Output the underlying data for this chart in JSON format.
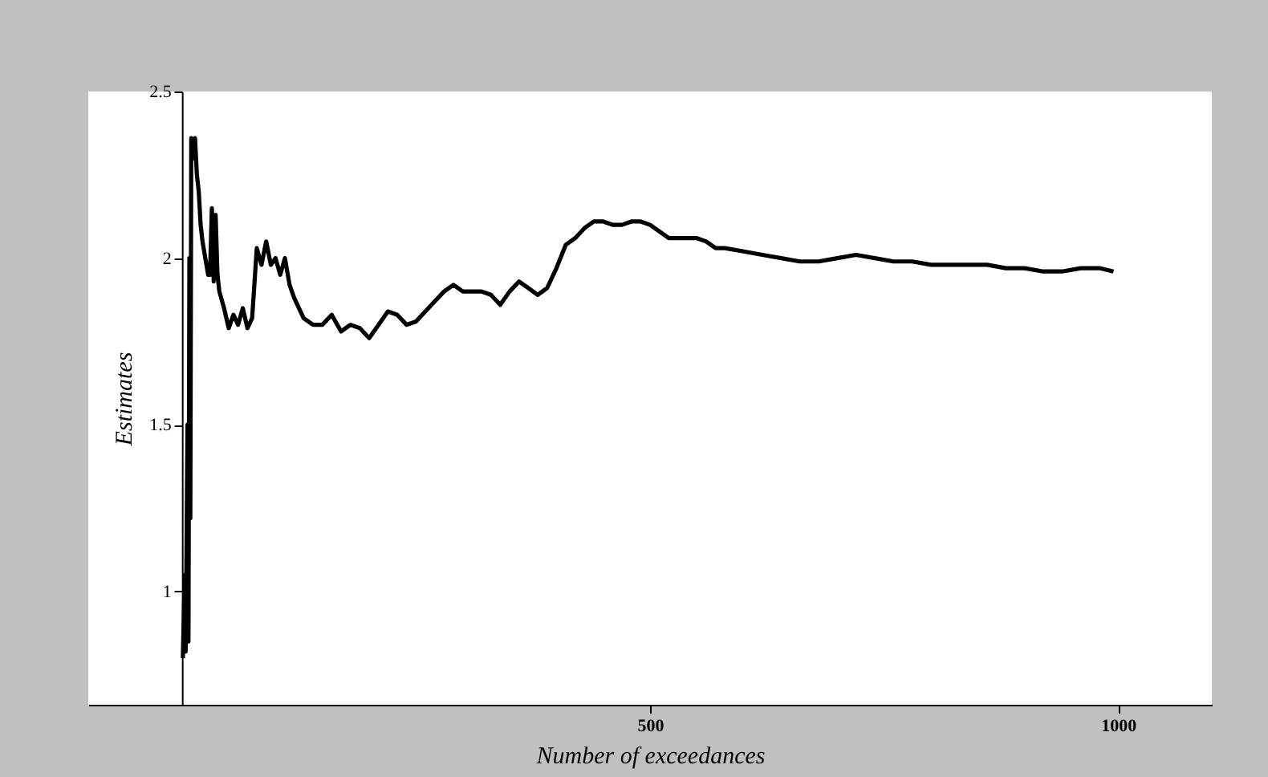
{
  "chart_data": {
    "type": "line",
    "xlabel": "Number of exceedances",
    "ylabel": "Estimates",
    "xlim": [
      -100,
      1100
    ],
    "ylim": [
      0.66,
      2.5
    ],
    "xticks": [
      500,
      1000
    ],
    "yticks": [
      1,
      1.5,
      2,
      2.5
    ],
    "grid": false,
    "marker": "none",
    "line_style": "solid",
    "series": [
      {
        "color": "#000000",
        "x": [
          1,
          3,
          4,
          6,
          7,
          8,
          9,
          10,
          12,
          14,
          16,
          18,
          20,
          22,
          25,
          28,
          30,
          32,
          34,
          36,
          38,
          40,
          45,
          50,
          55,
          60,
          65,
          70,
          75,
          80,
          85,
          90,
          95,
          100,
          105,
          110,
          115,
          120,
          130,
          140,
          150,
          160,
          170,
          180,
          190,
          200,
          210,
          220,
          230,
          240,
          250,
          260,
          270,
          280,
          290,
          300,
          310,
          320,
          330,
          340,
          350,
          360,
          370,
          380,
          390,
          400,
          410,
          420,
          430,
          440,
          450,
          460,
          470,
          480,
          490,
          500,
          510,
          520,
          530,
          550,
          560,
          570,
          580,
          600,
          620,
          640,
          660,
          680,
          700,
          720,
          740,
          760,
          780,
          800,
          820,
          840,
          860,
          880,
          900,
          920,
          940,
          960,
          980,
          995
        ],
        "values": [
          0.8,
          1.05,
          0.82,
          1.5,
          0.85,
          2.0,
          1.22,
          2.36,
          2.3,
          2.36,
          2.25,
          2.2,
          2.1,
          2.05,
          2.0,
          1.95,
          1.95,
          2.15,
          1.93,
          2.13,
          1.95,
          1.9,
          1.85,
          1.79,
          1.83,
          1.8,
          1.85,
          1.79,
          1.82,
          2.03,
          1.98,
          2.05,
          1.98,
          2.0,
          1.95,
          2.0,
          1.92,
          1.88,
          1.82,
          1.8,
          1.8,
          1.83,
          1.78,
          1.8,
          1.79,
          1.76,
          1.8,
          1.84,
          1.83,
          1.8,
          1.81,
          1.84,
          1.87,
          1.9,
          1.92,
          1.9,
          1.9,
          1.9,
          1.89,
          1.86,
          1.9,
          1.93,
          1.91,
          1.89,
          1.91,
          1.97,
          2.04,
          2.06,
          2.09,
          2.11,
          2.11,
          2.1,
          2.1,
          2.11,
          2.11,
          2.1,
          2.08,
          2.06,
          2.06,
          2.06,
          2.05,
          2.03,
          2.03,
          2.02,
          2.01,
          2.0,
          1.99,
          1.99,
          2.0,
          2.01,
          2.0,
          1.99,
          1.99,
          1.98,
          1.98,
          1.98,
          1.98,
          1.97,
          1.97,
          1.96,
          1.96,
          1.97,
          1.97,
          1.96
        ]
      }
    ]
  }
}
